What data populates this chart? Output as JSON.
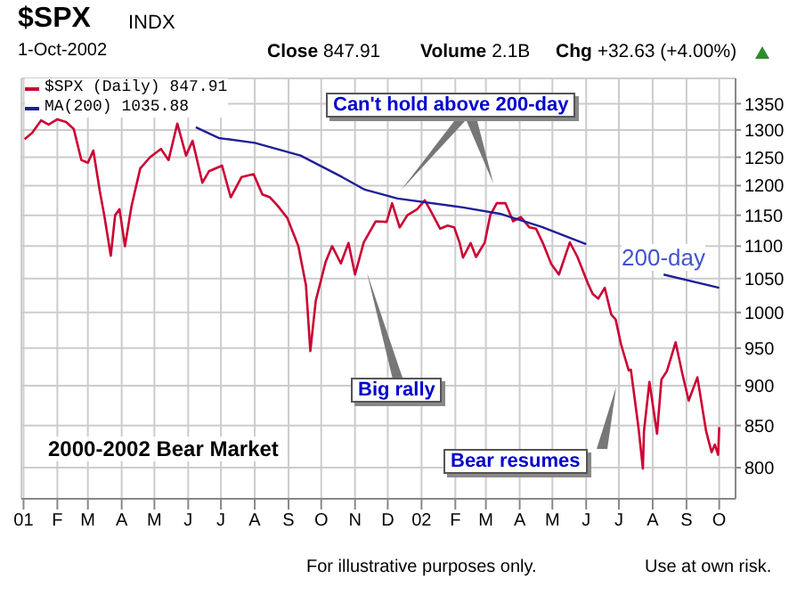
{
  "chart_data": {
    "type": "line",
    "title": "$SPX",
    "annotations": [
      "INDX",
      "1-Oct-2002",
      "Close 847.91",
      "Volume 2.1B",
      "Chg +32.63 (+4.00%)",
      "Can't hold above 200-day",
      "Big rally",
      "Bear resumes",
      "2000-2002 Bear Market",
      "200-day",
      "For illustrative purposes only.",
      "Use at own risk."
    ],
    "series": [
      {
        "name": "$SPX (Daily) 847.91",
        "color": "#cc0033",
        "x": [
          "2001-01-02",
          "2001-01-09",
          "2001-01-17",
          "2001-01-24",
          "2001-02-01",
          "2001-02-09",
          "2001-02-16",
          "2001-02-23",
          "2001-03-01",
          "2001-03-06",
          "2001-03-12",
          "2001-03-16",
          "2001-03-22",
          "2001-03-26",
          "2001-03-30",
          "2001-04-04",
          "2001-04-10",
          "2001-04-18",
          "2001-04-27",
          "2001-05-07",
          "2001-05-14",
          "2001-05-22",
          "2001-05-30",
          "2001-06-05",
          "2001-06-14",
          "2001-06-20",
          "2001-07-02",
          "2001-07-10",
          "2001-07-20",
          "2001-07-31",
          "2001-08-08",
          "2001-08-15",
          "2001-08-22",
          "2001-08-31",
          "2001-09-10",
          "2001-09-17",
          "2001-09-21",
          "2001-09-26",
          "2001-10-05",
          "2001-10-11",
          "2001-10-19",
          "2001-10-26",
          "2001-11-01",
          "2001-11-09",
          "2001-11-20",
          "2001-11-30",
          "2001-12-05",
          "2001-12-12",
          "2001-12-19",
          "2001-12-28",
          "2002-01-04",
          "2002-01-10",
          "2002-01-18",
          "2002-01-25",
          "2002-01-31",
          "2002-02-05",
          "2002-02-08",
          "2002-02-15",
          "2002-02-20",
          "2002-02-28",
          "2002-03-05",
          "2002-03-11",
          "2002-03-19",
          "2002-03-26",
          "2002-04-02",
          "2002-04-10",
          "2002-04-16",
          "2002-04-22",
          "2002-04-30",
          "2002-05-07",
          "2002-05-17",
          "2002-05-24",
          "2002-06-03",
          "2002-06-07",
          "2002-06-12",
          "2002-06-18",
          "2002-06-24",
          "2002-06-28",
          "2002-07-03",
          "2002-07-10",
          "2002-07-12",
          "2002-07-19",
          "2002-07-23",
          "2002-07-24",
          "2002-07-29",
          "2002-08-05",
          "2002-08-09",
          "2002-08-14",
          "2002-08-22",
          "2002-08-28",
          "2002-09-03",
          "2002-09-11",
          "2002-09-19",
          "2002-09-24",
          "2002-09-27",
          "2002-09-30",
          "2002-10-01"
        ],
        "values": [
          1283,
          1295,
          1318,
          1310,
          1320,
          1315,
          1302,
          1245,
          1240,
          1262,
          1190,
          1150,
          1085,
          1150,
          1160,
          1100,
          1165,
          1230,
          1250,
          1265,
          1245,
          1312,
          1253,
          1280,
          1205,
          1225,
          1235,
          1180,
          1215,
          1220,
          1185,
          1180,
          1166,
          1145,
          1100,
          1040,
          946,
          1017,
          1075,
          1100,
          1073,
          1105,
          1056,
          1106,
          1140,
          1139,
          1170,
          1130,
          1150,
          1160,
          1175,
          1155,
          1128,
          1133,
          1130,
          1105,
          1082,
          1105,
          1083,
          1106,
          1150,
          1170,
          1170,
          1140,
          1147,
          1130,
          1128,
          1106,
          1072,
          1056,
          1106,
          1083,
          1041,
          1027,
          1020,
          1036,
          997,
          990,
          955,
          920,
          921,
          847,
          799,
          843,
          905,
          840,
          908,
          919,
          958,
          917,
          881,
          911,
          843,
          818,
          827,
          815,
          848
        ]
      },
      {
        "name": "MA(200) 1035.88",
        "color": "#1f1f99",
        "x": [
          "2001-06-08",
          "2001-06-29",
          "2001-08-01",
          "2001-09-12",
          "2001-10-20",
          "2001-11-10",
          "2001-12-10",
          "2002-02-08",
          "2002-03-15",
          "2002-04-21",
          "2002-06-01",
          "2002-07-01",
          "2002-08-11",
          "2002-10-01"
        ],
        "values": [
          1305,
          1285,
          1276,
          1253,
          1215,
          1193,
          1178,
          1163,
          1152,
          1131,
          1103,
          null,
          1056,
          1036
        ]
      }
    ],
    "xlim": [
      "2000-12-30",
      "2002-10-16"
    ],
    "xticks": [
      {
        "value": "2001-01-01",
        "label": "01"
      },
      {
        "value": "2001-02-01",
        "label": "F"
      },
      {
        "value": "2001-03-01",
        "label": "M"
      },
      {
        "value": "2001-04-01",
        "label": "A"
      },
      {
        "value": "2001-05-01",
        "label": "M"
      },
      {
        "value": "2001-06-01",
        "label": "J"
      },
      {
        "value": "2001-07-01",
        "label": "J"
      },
      {
        "value": "2001-08-01",
        "label": "A"
      },
      {
        "value": "2001-09-01",
        "label": "S"
      },
      {
        "value": "2001-10-01",
        "label": "O"
      },
      {
        "value": "2001-11-01",
        "label": "N"
      },
      {
        "value": "2001-12-01",
        "label": "D"
      },
      {
        "value": "2002-01-01",
        "label": "02"
      },
      {
        "value": "2002-02-01",
        "label": "F"
      },
      {
        "value": "2002-03-01",
        "label": "M"
      },
      {
        "value": "2002-04-01",
        "label": "A"
      },
      {
        "value": "2002-05-01",
        "label": "M"
      },
      {
        "value": "2002-06-01",
        "label": "J"
      },
      {
        "value": "2002-07-01",
        "label": "J"
      },
      {
        "value": "2002-08-01",
        "label": "A"
      },
      {
        "value": "2002-09-01",
        "label": "S"
      },
      {
        "value": "2002-10-01",
        "label": "O"
      }
    ],
    "ylim": [
      765,
      1400
    ],
    "yticks": [
      800,
      850,
      900,
      950,
      1000,
      1050,
      1100,
      1150,
      1200,
      1250,
      1300,
      1350
    ],
    "log": "y",
    "grid": true,
    "legend": "top left",
    "marker": "none",
    "line_style": "solid"
  }
}
